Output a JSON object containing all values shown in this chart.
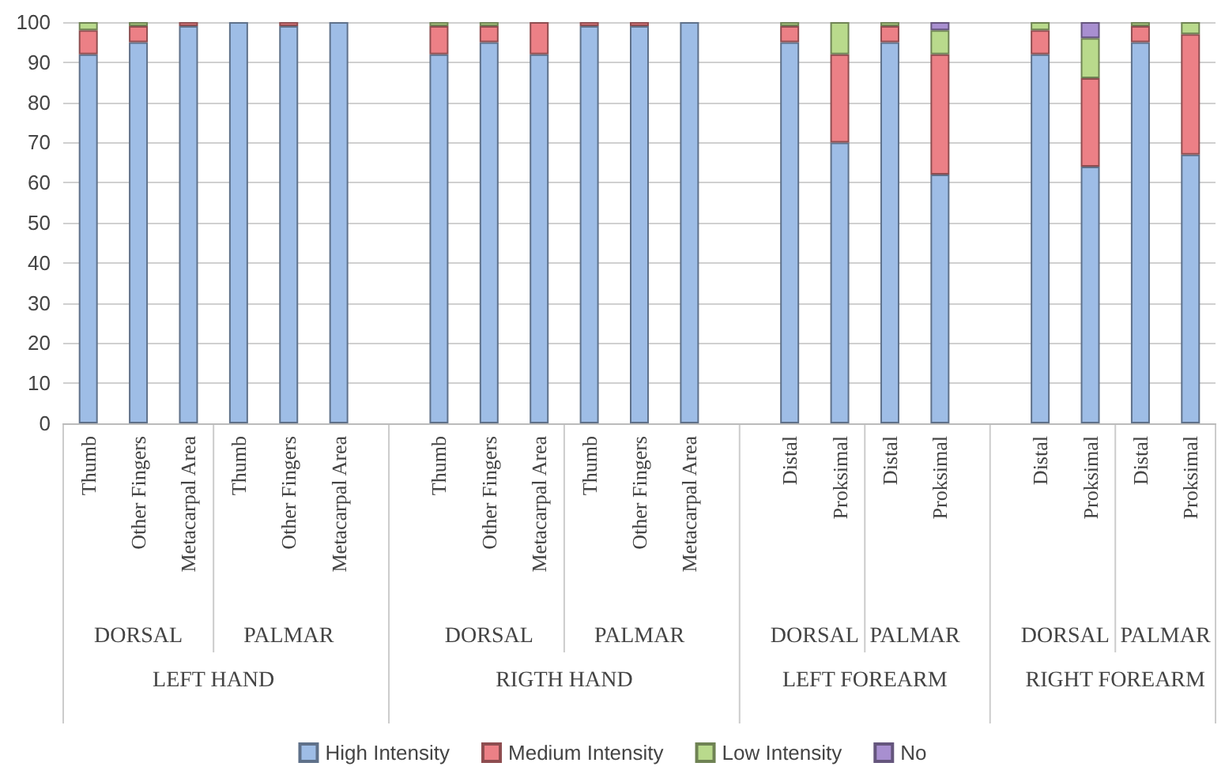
{
  "chart_data": {
    "type": "bar",
    "stacked": true,
    "categories": [
      "Thumb",
      "Other Fingers",
      "Metacarpal Area",
      "Thumb",
      "Other Fingers",
      "Metacarpal Area",
      null,
      "Thumb",
      "Other Fingers",
      "Metacarpal Area",
      "Thumb",
      "Other Fingers",
      "Metacarpal Area",
      null,
      "Distal",
      "Proksimal",
      "Distal",
      "Proksimal",
      null,
      "Distal",
      "Proksimal",
      "Distal",
      "Proksimal"
    ],
    "series": [
      {
        "name": "High Intensity",
        "color": "#9ebde6",
        "values": [
          92,
          95,
          99,
          100,
          99,
          100,
          null,
          92,
          95,
          92,
          99,
          99,
          100,
          null,
          95,
          70,
          95,
          62,
          null,
          92,
          64,
          95,
          67
        ]
      },
      {
        "name": "Medium Intensity",
        "color": "#ec8086",
        "values": [
          6,
          4,
          1,
          0,
          1,
          0,
          null,
          7,
          4,
          8,
          1,
          1,
          0,
          null,
          4,
          22,
          4,
          30,
          null,
          6,
          22,
          4,
          30
        ]
      },
      {
        "name": "Low Intensity",
        "color": "#b9da8c",
        "values": [
          2,
          1,
          0,
          0,
          0,
          0,
          null,
          1,
          1,
          0,
          0,
          0,
          0,
          null,
          1,
          8,
          1,
          6,
          null,
          2,
          10,
          1,
          3
        ]
      },
      {
        "name": "No",
        "color": "#a88fd0",
        "values": [
          0,
          0,
          0,
          0,
          0,
          0,
          null,
          0,
          0,
          0,
          0,
          0,
          0,
          null,
          0,
          0,
          0,
          2,
          null,
          0,
          4,
          0,
          0
        ]
      }
    ],
    "ylim": [
      0,
      100
    ],
    "yticks": [
      0,
      10,
      20,
      30,
      40,
      50,
      60,
      70,
      80,
      90,
      100
    ],
    "grid": "y",
    "legend": "bottom",
    "annotations": [
      "DORSAL",
      "PALMAR",
      "LEFT HAND",
      "DORSAL",
      "PALMAR",
      "RIGTH HAND",
      "DORSAL",
      "PALMAR",
      "LEFT FOREARM",
      "DORSAL",
      "PALMAR",
      "RIGHT FOREARM"
    ]
  }
}
